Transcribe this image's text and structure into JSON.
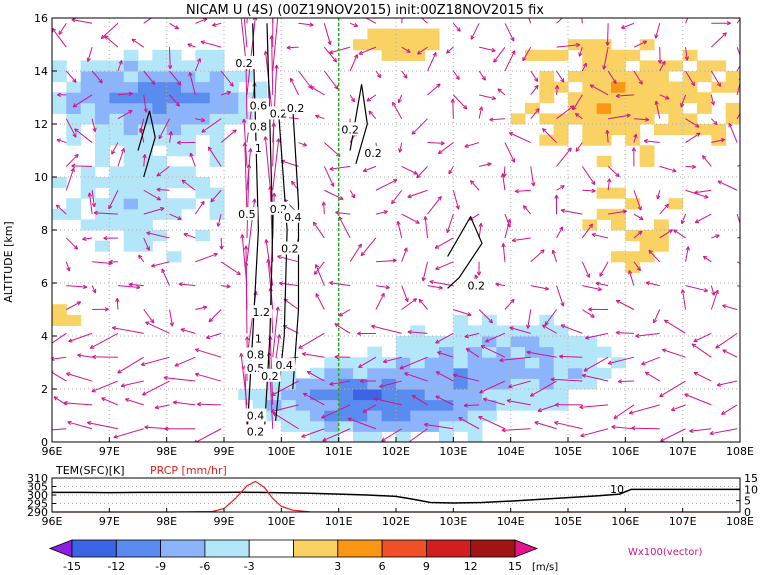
{
  "chart_data": [
    {
      "type": "heatmap",
      "title": "NICAM U (4S) (00Z19NOV2015) init:00Z18NOV2015 fix",
      "ylabel": "ALTITUDE [km]",
      "xlabel": "",
      "x_ticks": [
        "96E",
        "97E",
        "98E",
        "99E",
        "100E",
        "101E",
        "102E",
        "103E",
        "104E",
        "105E",
        "106E",
        "107E",
        "108E"
      ],
      "y_ticks": [
        "0",
        "2",
        "4",
        "6",
        "8",
        "10",
        "12",
        "14",
        "16"
      ],
      "xlim": [
        96,
        108
      ],
      "ylim": [
        0,
        16
      ],
      "grid": true,
      "contour_labels": [
        {
          "text": "0.2",
          "x": 99.35,
          "y": 14.3
        },
        {
          "text": "0.6",
          "x": 99.6,
          "y": 12.7
        },
        {
          "text": "0.8",
          "x": 99.6,
          "y": 11.9
        },
        {
          "text": "1",
          "x": 99.6,
          "y": 11.1
        },
        {
          "text": "0.2",
          "x": 99.95,
          "y": 12.4
        },
        {
          "text": "0.2",
          "x": 100.25,
          "y": 12.6
        },
        {
          "text": "0.2",
          "x": 101.2,
          "y": 11.8
        },
        {
          "text": "0.2",
          "x": 101.6,
          "y": 10.9
        },
        {
          "text": "0.5",
          "x": 99.4,
          "y": 8.6
        },
        {
          "text": "0.2",
          "x": 99.95,
          "y": 8.8
        },
        {
          "text": "0.4",
          "x": 100.2,
          "y": 8.5
        },
        {
          "text": "0.2",
          "x": 100.15,
          "y": 7.3
        },
        {
          "text": "0.2",
          "x": 103.4,
          "y": 5.9
        },
        {
          "text": "1.2",
          "x": 99.65,
          "y": 4.9
        },
        {
          "text": "1",
          "x": 99.6,
          "y": 3.9
        },
        {
          "text": "0.8",
          "x": 99.55,
          "y": 3.3
        },
        {
          "text": "0.5",
          "x": 99.55,
          "y": 2.8
        },
        {
          "text": "0.4",
          "x": 100.05,
          "y": 2.9
        },
        {
          "text": "0.2",
          "x": 99.8,
          "y": 2.5
        },
        {
          "text": "0.4",
          "x": 99.55,
          "y": 1.0
        },
        {
          "text": "0.2",
          "x": 99.55,
          "y": 0.4
        }
      ],
      "marker_line_x": 101.0,
      "colorbar": {
        "unit": "[m/s]",
        "ticks": [
          "-15",
          "-12",
          "-9",
          "-6",
          "-3",
          "3",
          "6",
          "9",
          "12",
          "15"
        ],
        "colors": [
          "#8c1ee6",
          "#3c64e6",
          "#5a8cf0",
          "#8cb4fa",
          "#b4e6fa",
          "#ffffff",
          "#fad264",
          "#fa9614",
          "#f05028",
          "#d21e1e",
          "#a01414",
          "#e6148c"
        ]
      },
      "vector_label": "Wx100(vector)",
      "colors": {
        "vector": "#d2148c",
        "contour": "#000000",
        "marker_line": "#22aa22"
      }
    },
    {
      "type": "line",
      "x_ticks": [
        "96E",
        "97E",
        "98E",
        "99E",
        "100E",
        "101E",
        "102E",
        "103E",
        "104E",
        "105E",
        "106E",
        "107E",
        "108E"
      ],
      "xlim": [
        96,
        108
      ],
      "left_axis_label": "TEM(SFC)[K]",
      "left_ticks": [
        "310",
        "305",
        "300",
        "295",
        "290"
      ],
      "left_ylim": [
        290,
        310
      ],
      "right_axis_label": "PRCP [mm/hr]",
      "right_ticks": [
        "15",
        "10",
        "5",
        "0"
      ],
      "right_ylim": [
        0,
        15
      ],
      "annotation": "10",
      "series": [
        {
          "name": "TEM(SFC)",
          "color": "#000000",
          "x": [
            96,
            96.5,
            97,
            97.5,
            98,
            98.5,
            99,
            99.3,
            99.6,
            100,
            100.5,
            101,
            101.5,
            102,
            102.3,
            102.6,
            103,
            103.5,
            104,
            104.5,
            105,
            105.5,
            105.9,
            106.1,
            106.5,
            107,
            107.5,
            108
          ],
          "y": [
            301.5,
            301.5,
            301.4,
            301.5,
            301.5,
            301.5,
            301.5,
            301.6,
            301.5,
            301.3,
            301.0,
            300.5,
            300.0,
            299.2,
            297.5,
            295.6,
            295.3,
            295.6,
            296.4,
            297.4,
            298.5,
            299.5,
            300.5,
            303.3,
            303.3,
            303.3,
            303.3,
            303.3
          ]
        },
        {
          "name": "PRCP",
          "color": "#e02020",
          "x": [
            96,
            97,
            98,
            98.8,
            99.0,
            99.2,
            99.4,
            99.55,
            99.7,
            99.85,
            100,
            100.2,
            100.5,
            101,
            102,
            103,
            104,
            105,
            106,
            107,
            108
          ],
          "y": [
            0,
            0,
            0,
            0.2,
            1.5,
            6.0,
            11.5,
            13.5,
            11.0,
            6.0,
            2.5,
            0.8,
            0.1,
            0,
            0,
            0,
            0,
            0,
            0,
            0,
            0
          ]
        }
      ]
    }
  ]
}
